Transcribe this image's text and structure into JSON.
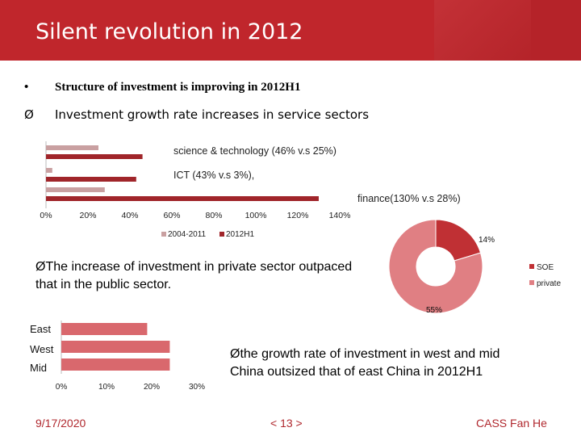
{
  "header": {
    "title": "Silent revolution in 2012"
  },
  "bullets": {
    "b1": {
      "marker": "•",
      "text": "Structure of investment is improving in 2012H1"
    },
    "b2": {
      "marker": "Ø",
      "text": "Investment growth rate increases in service sectors"
    }
  },
  "texts": {
    "private_line1": "ØThe increase of investment in private sector outpaced",
    "private_line2": "that in the public sector.",
    "west_line1": "Øthe growth rate of investment in west and mid",
    "west_line2": "China outsized that of east China in 2012H1"
  },
  "footer": {
    "date": "9/17/2020",
    "page": "< 13 >",
    "author": "CASS Fan He"
  },
  "colors": {
    "header": "#c0262c",
    "series_a": "#c9a0a1",
    "series_b": "#a0252a",
    "region": "#d9686d",
    "soe": "#c03034",
    "private": "#e07f83"
  },
  "chart_data": [
    {
      "type": "bar",
      "orientation": "horizontal",
      "categories": [
        "science & technology (46% v.s 25%)",
        "ICT (43% v.s 3%),",
        "finance(130% v.s 28%)"
      ],
      "series": [
        {
          "name": "2004-2011",
          "values": [
            25,
            3,
            28
          ]
        },
        {
          "name": "2012H1",
          "values": [
            46,
            43,
            130
          ]
        }
      ],
      "xticks": [
        "0%",
        "20%",
        "40%",
        "60%",
        "80%",
        "100%",
        "120%",
        "140%"
      ],
      "xlim": [
        0,
        140
      ],
      "legend": "bottom"
    },
    {
      "type": "pie",
      "hole": true,
      "labels": [
        "SOE",
        "private"
      ],
      "values": [
        14,
        55
      ],
      "data_labels": [
        "14%",
        "55%"
      ],
      "legend": "right"
    },
    {
      "type": "bar",
      "orientation": "horizontal",
      "categories": [
        "East",
        "West",
        "Mid"
      ],
      "values": [
        19,
        24,
        24
      ],
      "xticks": [
        "0%",
        "10%",
        "20%",
        "30%"
      ],
      "xlim": [
        0,
        30
      ]
    }
  ]
}
